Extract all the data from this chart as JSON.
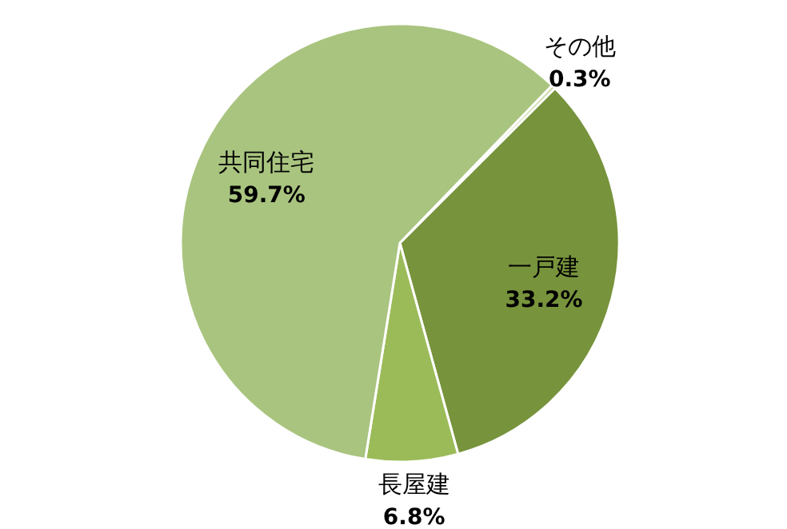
{
  "chart_data": {
    "type": "pie",
    "categories": [
      "その他",
      "一戸建",
      "長屋建",
      "共同住宅"
    ],
    "values": [
      0.3,
      33.2,
      6.8,
      59.7
    ],
    "value_labels": [
      "0.3%",
      "33.2%",
      "6.8%",
      "59.7%"
    ],
    "colors": [
      "#c3d69b",
      "#77933c",
      "#9bbb59",
      "#a9c47f"
    ],
    "legend": false
  }
}
